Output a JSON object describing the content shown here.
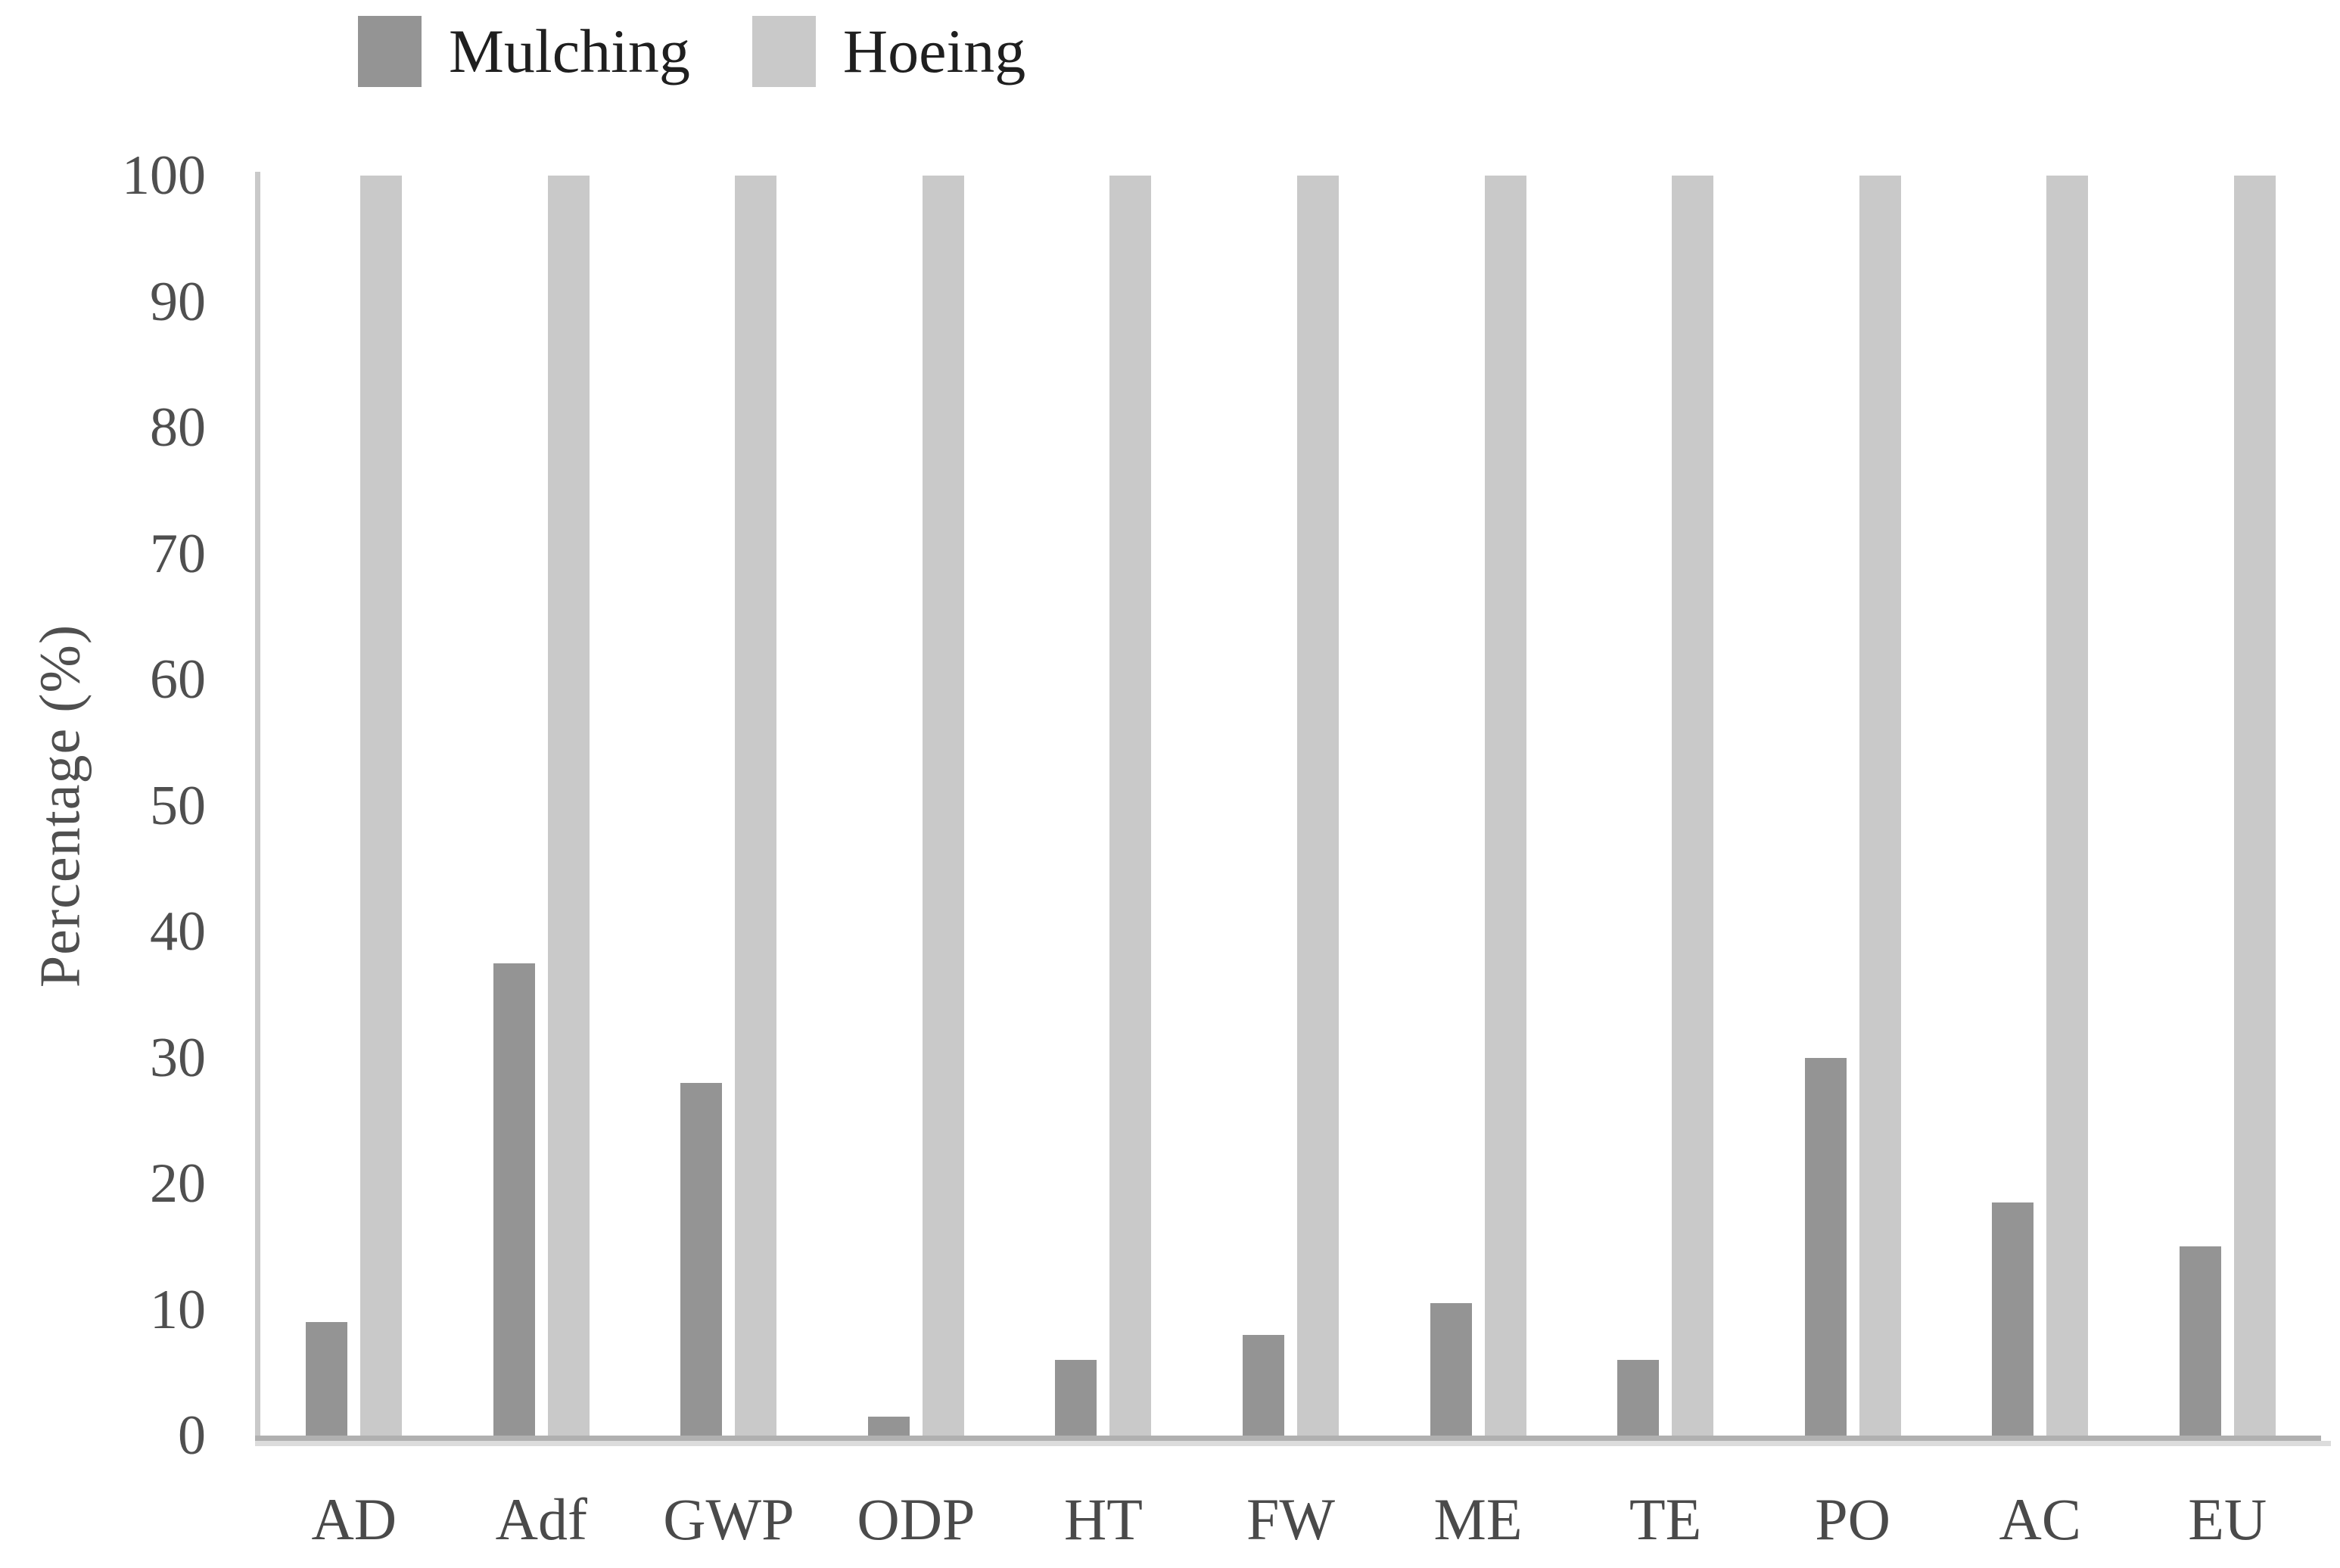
{
  "legend": {
    "items": [
      {
        "label": "Mulching",
        "color": "#949494"
      },
      {
        "label": "Hoeing",
        "color": "#c9c9c9"
      }
    ]
  },
  "chart_data": {
    "type": "bar",
    "title": "",
    "categories": [
      "AD",
      "Adf",
      "GWP",
      "ODP",
      "HT",
      "FW",
      "ME",
      "TE",
      "PO",
      "AC",
      "EU"
    ],
    "series": [
      {
        "name": "Mulching",
        "color": "#949494",
        "values": [
          9,
          37.5,
          28,
          1.5,
          6,
          8,
          10.5,
          6,
          30,
          18.5,
          15
        ]
      },
      {
        "name": "Hoeing",
        "color": "#c9c9c9",
        "values": [
          100,
          100,
          100,
          100,
          100,
          100,
          100,
          100,
          100,
          100,
          100
        ]
      }
    ],
    "xlabel": "",
    "ylabel": "Percentage (%)",
    "ylim": [
      0,
      100
    ],
    "yticks": [
      0,
      10,
      20,
      30,
      40,
      50,
      60,
      70,
      80,
      90,
      100
    ],
    "grid": false,
    "legend_position": "top-left",
    "axis_color": "#b0b0b0"
  }
}
